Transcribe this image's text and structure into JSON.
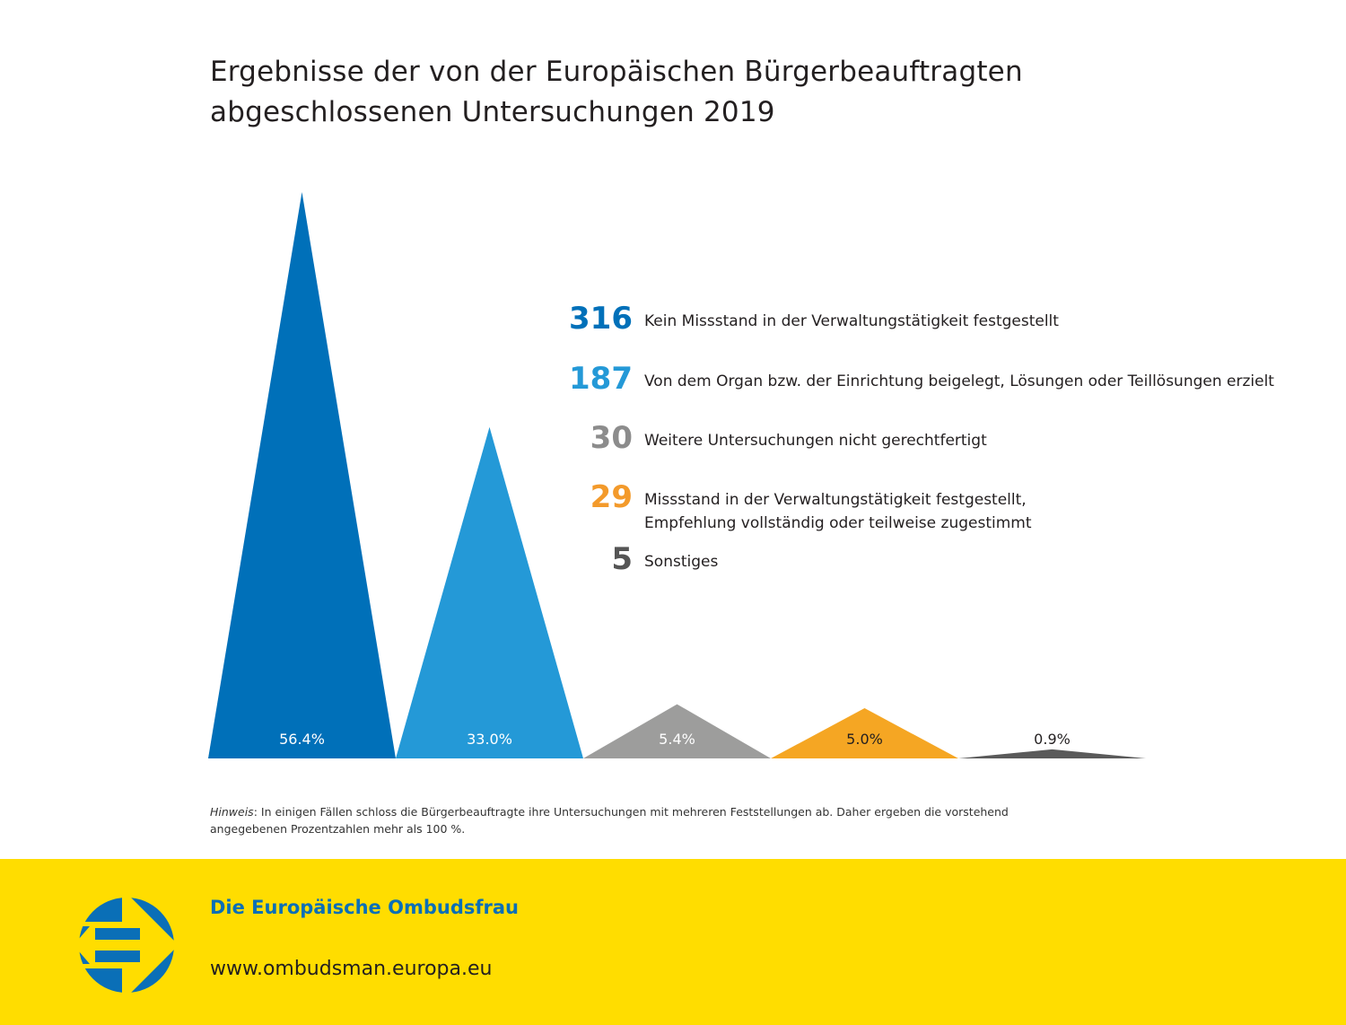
{
  "header": {
    "title_line1": "Ergebnisse der von der Europäischen Bürgerbeauftragten",
    "title_line2": "abgeschlossenen Untersuchungen 2019"
  },
  "chart_data": {
    "type": "bar",
    "style": "triangle-peaks",
    "title": "Ergebnisse der von der Europäischen Bürgerbeauftragten abgeschlossenen Untersuchungen 2019",
    "xlabel": "",
    "ylabel": "",
    "grid": false,
    "legend_position": "right",
    "ylim": [
      0,
      56.4
    ],
    "categories": [
      "Kein Missstand in der Verwaltungstätigkeit festgestellt",
      "Von dem Organ bzw. der Einrichtung beigelegt, Lösungen oder Teillösungen erzielt",
      "Weitere Untersuchungen nicht gerechtfertigt",
      "Missstand in der Verwaltungstätigkeit festgestellt, Empfehlung vollständig oder teilweise zugestimmt",
      "Sonstiges"
    ],
    "counts": [
      316,
      187,
      30,
      29,
      5
    ],
    "values": [
      56.4,
      33.0,
      5.4,
      5.0,
      0.9
    ],
    "value_labels": [
      "56.4%",
      "33.0%",
      "5.4%",
      "5.0%",
      "0.9%"
    ],
    "colors": [
      "#0070b9",
      "#2499d7",
      "#9d9d9c",
      "#f5a623",
      "#5a5a5a"
    ],
    "label_colors": [
      "#ffffff",
      "#ffffff",
      "#ffffff",
      "#231f20",
      "#231f20"
    ]
  },
  "legend": [
    {
      "count": "316",
      "text_line1": "Kein Missstand in der Verwaltungstätigkeit festgestellt",
      "text_line2": "",
      "color": "#0070b9"
    },
    {
      "count": "187",
      "text_line1": "Von dem Organ bzw. der Einrichtung beigelegt, Lösungen oder Teillösungen erzielt",
      "text_line2": "",
      "color": "#2499d7"
    },
    {
      "count": "30",
      "text_line1": "Weitere Untersuchungen nicht gerechtfertigt",
      "text_line2": "",
      "color": "#8c8c8c"
    },
    {
      "count": "29",
      "text_line1": "Missstand in der Verwaltungstätigkeit festgestellt,",
      "text_line2": "Empfehlung vollständig oder teilweise zugestimmt",
      "color": "#f39a2b"
    },
    {
      "count": "5",
      "text_line1": "Sonstiges",
      "text_line2": "",
      "color": "#555555"
    }
  ],
  "note": {
    "label": "Hinweis",
    "text": ": In einigen Fällen schloss die Bürgerbeauftragte ihre Untersuchungen mit mehreren Feststellungen ab. Daher ergeben die vorstehend angegebenen Prozentzahlen mehr als 100 %."
  },
  "footer": {
    "organization": "Die Europäische Ombudsfrau",
    "url": "www.ombudsman.europa.eu",
    "logo_icon": "european-ombudsman-logo-icon",
    "background_color": "#ffdd00",
    "brand_color": "#0a6fb7"
  }
}
